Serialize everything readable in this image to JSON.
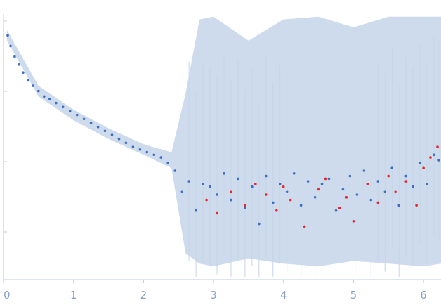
{
  "chart_data": {
    "type": "scatter",
    "title": "",
    "xlabel": "",
    "ylabel": "",
    "x_axis": {
      "ticks": [
        0,
        1,
        2,
        3,
        4,
        5,
        6
      ],
      "lim": [
        0,
        6.25
      ]
    },
    "y_axis": {
      "scale": "log",
      "tick_labels_shown": false
    },
    "grid": false,
    "legend": "none",
    "colors": {
      "primary_points": "#3a6fc4",
      "outlier_points": "#e8262c",
      "error_bars": "#c5d5ea",
      "axis": "#b9cbe0",
      "tick_labels": "#8aa4c4"
    },
    "series": [
      {
        "role": "primary",
        "color": "#3a6fc4",
        "x": [
          0.06,
          0.1,
          0.16,
          0.22,
          0.28,
          0.35,
          0.42,
          0.5,
          0.58,
          0.66,
          0.75,
          0.85,
          0.95,
          1.05,
          1.15,
          1.25,
          1.35,
          1.45,
          1.55,
          1.65,
          1.75,
          1.85,
          1.95,
          2.05,
          2.15,
          2.25,
          2.35,
          2.45,
          2.55,
          2.65,
          2.75,
          2.85,
          2.95,
          3.05,
          3.15,
          3.25,
          3.35,
          3.45,
          3.55,
          3.65,
          3.75,
          3.85,
          3.95,
          4.05,
          4.15,
          4.25,
          4.35,
          4.45,
          4.55,
          4.65,
          4.75,
          4.85,
          4.95,
          5.05,
          5.15,
          5.25,
          5.35,
          5.45,
          5.55,
          5.65,
          5.75,
          5.85,
          5.95,
          6.05,
          6.15,
          6.22
        ],
        "y": [
          0.92,
          0.88,
          0.84,
          0.81,
          0.78,
          0.75,
          0.73,
          0.71,
          0.69,
          0.68,
          0.665,
          0.65,
          0.635,
          0.62,
          0.605,
          0.59,
          0.575,
          0.56,
          0.545,
          0.53,
          0.515,
          0.5,
          0.49,
          0.48,
          0.47,
          0.46,
          0.44,
          0.41,
          0.33,
          0.37,
          0.26,
          0.36,
          0.35,
          0.32,
          0.4,
          0.3,
          0.38,
          0.27,
          0.35,
          0.21,
          0.39,
          0.29,
          0.36,
          0.33,
          0.4,
          0.28,
          0.37,
          0.31,
          0.36,
          0.38,
          0.26,
          0.34,
          0.39,
          0.32,
          0.41,
          0.3,
          0.37,
          0.33,
          0.42,
          0.28,
          0.39,
          0.35,
          0.44,
          0.36,
          0.47,
          0.45
        ]
      },
      {
        "role": "outliers",
        "color": "#e8262c",
        "x": [
          2.9,
          3.05,
          3.25,
          3.45,
          3.6,
          3.75,
          3.9,
          4.0,
          4.1,
          4.3,
          4.5,
          4.6,
          4.8,
          4.9,
          5.0,
          5.2,
          5.35,
          5.5,
          5.6,
          5.75,
          5.9,
          6.0,
          6.1,
          6.2
        ],
        "y": [
          0.3,
          0.25,
          0.33,
          0.28,
          0.36,
          0.32,
          0.26,
          0.35,
          0.3,
          0.2,
          0.34,
          0.38,
          0.27,
          0.31,
          0.22,
          0.36,
          0.29,
          0.39,
          0.33,
          0.37,
          0.28,
          0.42,
          0.46,
          0.5
        ]
      }
    ],
    "error_bar_envelope": {
      "x": [
        0.05,
        0.5,
        1.0,
        1.5,
        2.0,
        2.4,
        2.6,
        2.8,
        3.0,
        3.5,
        4.0,
        4.5,
        5.0,
        5.5,
        6.0,
        6.25
      ],
      "lo": [
        0.9,
        0.69,
        0.6,
        0.53,
        0.47,
        0.42,
        0.1,
        0.06,
        0.05,
        0.08,
        0.06,
        0.05,
        0.07,
        0.06,
        0.05,
        0.06
      ],
      "hi": [
        0.94,
        0.73,
        0.64,
        0.57,
        0.51,
        0.48,
        0.7,
        0.98,
        0.99,
        0.9,
        0.98,
        0.99,
        0.95,
        0.99,
        0.99,
        0.99
      ]
    }
  }
}
